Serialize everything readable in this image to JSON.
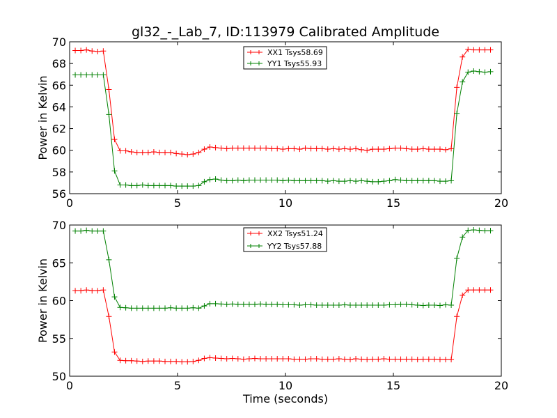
{
  "figure": {
    "title": "gl32_-_Lab_7, ID:113979 Calibrated Amplitude"
  },
  "chart_data": [
    {
      "type": "line",
      "title": "gl32_-_Lab_7, ID:113979 Calibrated Amplitude",
      "xlabel": "",
      "ylabel": "Power in Kelvin",
      "xlim": [
        0,
        20
      ],
      "ylim": [
        56,
        70
      ],
      "xticks": [
        "0",
        "5",
        "10",
        "15",
        "20"
      ],
      "yticks": [
        "56",
        "58",
        "60",
        "62",
        "64",
        "66",
        "68",
        "70"
      ],
      "legend_position": "top-center",
      "grid": false,
      "x": [
        0.26,
        0.52,
        0.78,
        1.04,
        1.3,
        1.56,
        1.82,
        2.08,
        2.34,
        2.6,
        2.86,
        3.12,
        3.38,
        3.64,
        3.9,
        4.16,
        4.42,
        4.68,
        4.94,
        5.2,
        5.46,
        5.72,
        5.98,
        6.24,
        6.5,
        6.76,
        7.02,
        7.28,
        7.54,
        7.8,
        8.06,
        8.32,
        8.58,
        8.84,
        9.1,
        9.36,
        9.62,
        9.88,
        10.14,
        10.4,
        10.66,
        10.92,
        11.18,
        11.44,
        11.7,
        11.96,
        12.22,
        12.48,
        12.74,
        13.0,
        13.26,
        13.52,
        13.78,
        14.04,
        14.3,
        14.56,
        14.82,
        15.08,
        15.34,
        15.6,
        15.86,
        16.12,
        16.38,
        16.64,
        16.9,
        17.16,
        17.42,
        17.68,
        17.94,
        18.2,
        18.46,
        18.72,
        18.98,
        19.24,
        19.5
      ],
      "series": [
        {
          "name": "XX1 Tsys58.69",
          "color": "#ff0000",
          "values": [
            69.2,
            69.2,
            69.25,
            69.15,
            69.1,
            69.15,
            65.6,
            61.0,
            59.95,
            59.95,
            59.85,
            59.8,
            59.8,
            59.8,
            59.85,
            59.8,
            59.8,
            59.8,
            59.7,
            59.65,
            59.6,
            59.65,
            59.8,
            60.1,
            60.3,
            60.25,
            60.2,
            60.15,
            60.2,
            60.2,
            60.2,
            60.2,
            60.2,
            60.2,
            60.2,
            60.15,
            60.15,
            60.1,
            60.15,
            60.15,
            60.1,
            60.2,
            60.15,
            60.15,
            60.15,
            60.1,
            60.15,
            60.1,
            60.15,
            60.1,
            60.15,
            60.05,
            60.0,
            60.1,
            60.1,
            60.1,
            60.15,
            60.2,
            60.2,
            60.15,
            60.1,
            60.1,
            60.15,
            60.1,
            60.1,
            60.1,
            60.05,
            60.15,
            65.8,
            68.6,
            69.3,
            69.25,
            69.25,
            69.25,
            69.25
          ]
        },
        {
          "name": "YY1 Tsys55.93",
          "color": "#008000",
          "values": [
            66.95,
            66.95,
            66.95,
            66.95,
            66.95,
            66.95,
            63.3,
            58.1,
            56.8,
            56.8,
            56.75,
            56.75,
            56.8,
            56.75,
            56.75,
            56.75,
            56.75,
            56.75,
            56.7,
            56.7,
            56.7,
            56.7,
            56.75,
            57.1,
            57.3,
            57.35,
            57.25,
            57.2,
            57.2,
            57.25,
            57.2,
            57.25,
            57.25,
            57.25,
            57.25,
            57.25,
            57.25,
            57.2,
            57.25,
            57.2,
            57.2,
            57.2,
            57.2,
            57.2,
            57.2,
            57.15,
            57.2,
            57.15,
            57.15,
            57.2,
            57.15,
            57.2,
            57.15,
            57.1,
            57.1,
            57.15,
            57.2,
            57.3,
            57.25,
            57.2,
            57.2,
            57.2,
            57.2,
            57.2,
            57.2,
            57.15,
            57.15,
            57.2,
            63.4,
            66.3,
            67.2,
            67.3,
            67.25,
            67.2,
            67.25
          ]
        }
      ]
    },
    {
      "type": "line",
      "title": "",
      "xlabel": "Time (seconds)",
      "ylabel": "Power in Kelvin",
      "xlim": [
        0,
        20
      ],
      "ylim": [
        50,
        70
      ],
      "xticks": [
        "0",
        "5",
        "10",
        "15",
        "20"
      ],
      "yticks": [
        "50",
        "55",
        "60",
        "65",
        "70"
      ],
      "legend_position": "top-center",
      "grid": false,
      "x": [
        0.26,
        0.52,
        0.78,
        1.04,
        1.3,
        1.56,
        1.82,
        2.08,
        2.34,
        2.6,
        2.86,
        3.12,
        3.38,
        3.64,
        3.9,
        4.16,
        4.42,
        4.68,
        4.94,
        5.2,
        5.46,
        5.72,
        5.98,
        6.24,
        6.5,
        6.76,
        7.02,
        7.28,
        7.54,
        7.8,
        8.06,
        8.32,
        8.58,
        8.84,
        9.1,
        9.36,
        9.62,
        9.88,
        10.14,
        10.4,
        10.66,
        10.92,
        11.18,
        11.44,
        11.7,
        11.96,
        12.22,
        12.48,
        12.74,
        13.0,
        13.26,
        13.52,
        13.78,
        14.04,
        14.3,
        14.56,
        14.82,
        15.08,
        15.34,
        15.6,
        15.86,
        16.12,
        16.38,
        16.64,
        16.9,
        17.16,
        17.42,
        17.68,
        17.94,
        18.2,
        18.46,
        18.72,
        18.98,
        19.24,
        19.5
      ],
      "series": [
        {
          "name": "XX2 Tsys51.24",
          "color": "#ff0000",
          "values": [
            61.3,
            61.3,
            61.4,
            61.3,
            61.3,
            61.4,
            57.9,
            53.2,
            52.1,
            52.05,
            52.05,
            52.0,
            51.95,
            52.0,
            52.0,
            52.0,
            51.95,
            51.95,
            51.95,
            51.9,
            51.9,
            51.95,
            52.1,
            52.35,
            52.45,
            52.4,
            52.35,
            52.3,
            52.35,
            52.3,
            52.25,
            52.3,
            52.35,
            52.3,
            52.3,
            52.3,
            52.3,
            52.3,
            52.3,
            52.25,
            52.25,
            52.25,
            52.3,
            52.3,
            52.25,
            52.25,
            52.25,
            52.3,
            52.25,
            52.2,
            52.3,
            52.25,
            52.2,
            52.25,
            52.25,
            52.3,
            52.25,
            52.25,
            52.25,
            52.25,
            52.25,
            52.2,
            52.25,
            52.25,
            52.25,
            52.2,
            52.2,
            52.2,
            57.9,
            60.7,
            61.4,
            61.4,
            61.4,
            61.4,
            61.4
          ]
        },
        {
          "name": "YY2 Tsys57.88",
          "color": "#008000",
          "values": [
            69.2,
            69.2,
            69.3,
            69.2,
            69.2,
            69.2,
            65.4,
            60.5,
            59.1,
            59.05,
            59.0,
            59.0,
            59.0,
            59.0,
            59.0,
            59.0,
            59.0,
            59.05,
            59.0,
            59.0,
            59.0,
            59.05,
            59.0,
            59.3,
            59.6,
            59.6,
            59.55,
            59.5,
            59.55,
            59.5,
            59.5,
            59.5,
            59.5,
            59.55,
            59.5,
            59.5,
            59.5,
            59.45,
            59.45,
            59.45,
            59.4,
            59.45,
            59.45,
            59.4,
            59.4,
            59.4,
            59.4,
            59.4,
            59.45,
            59.4,
            59.4,
            59.4,
            59.4,
            59.4,
            59.4,
            59.4,
            59.45,
            59.45,
            59.5,
            59.5,
            59.45,
            59.4,
            59.35,
            59.4,
            59.4,
            59.35,
            59.45,
            59.4,
            65.6,
            68.4,
            69.3,
            69.35,
            69.3,
            69.25,
            69.25
          ]
        }
      ]
    }
  ]
}
